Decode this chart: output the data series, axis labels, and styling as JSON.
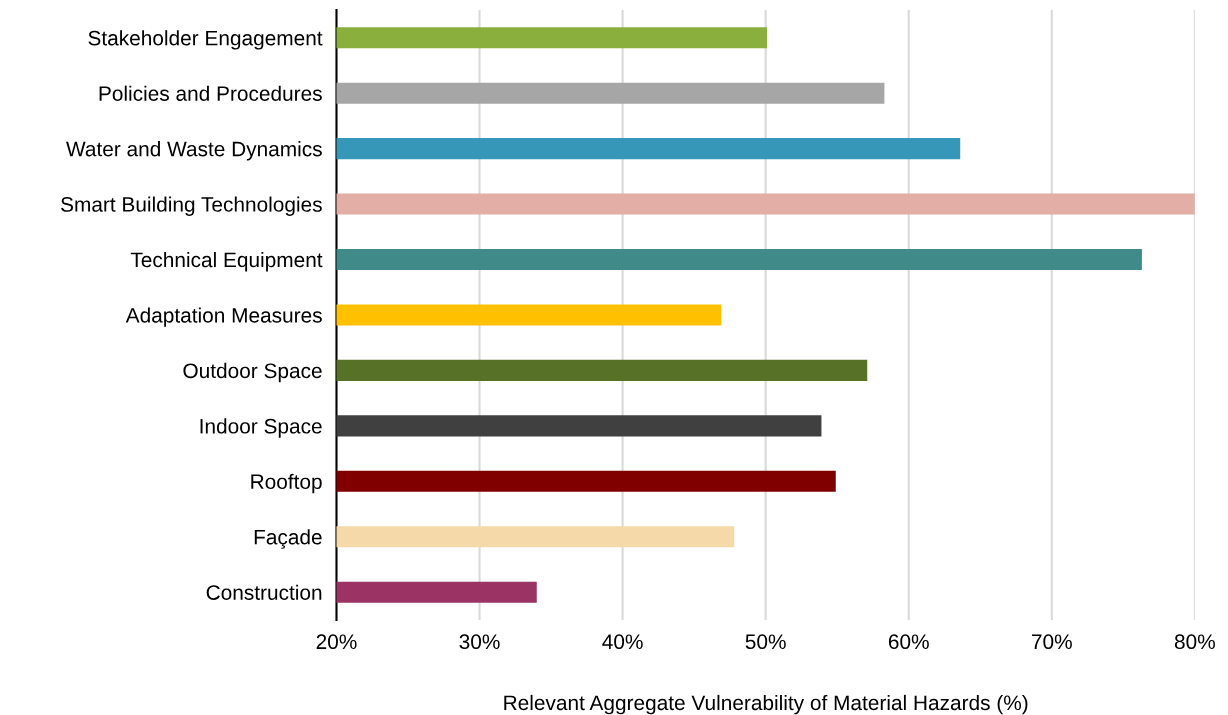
{
  "chart_data": {
    "type": "bar",
    "orientation": "horizontal",
    "xlabel": "Relevant Aggregate Vulnerability of Material Hazards (%)",
    "categories": [
      "Stakeholder Engagement",
      "Policies and Procedures",
      "Water and Waste Dynamics",
      "Smart Building Technologies",
      "Technical Equipment",
      "Adaptation Measures",
      "Outdoor Space",
      "Indoor Space",
      "Rooftop",
      "Façade",
      "Construction"
    ],
    "values": [
      50.1,
      58.3,
      63.6,
      80,
      76.3,
      46.9,
      57.1,
      53.9,
      54.9,
      47.8,
      34.0
    ],
    "colors": [
      "#8aaf3c",
      "#a6a6a6",
      "#3797b8",
      "#e2aea6",
      "#418a8a",
      "#ffc000",
      "#577126",
      "#404040",
      "#800000",
      "#f5d9a8",
      "#9b3365"
    ],
    "xlim": [
      20,
      80
    ],
    "xticks": [
      {
        "value": 20,
        "label": "20%"
      },
      {
        "value": 30,
        "label": "30%"
      },
      {
        "value": 40,
        "label": "40%"
      },
      {
        "value": 50,
        "label": "50%"
      },
      {
        "value": 60,
        "label": "60%"
      },
      {
        "value": 70,
        "label": "70%"
      },
      {
        "value": 80,
        "label": "80%"
      }
    ],
    "grid": "x"
  }
}
